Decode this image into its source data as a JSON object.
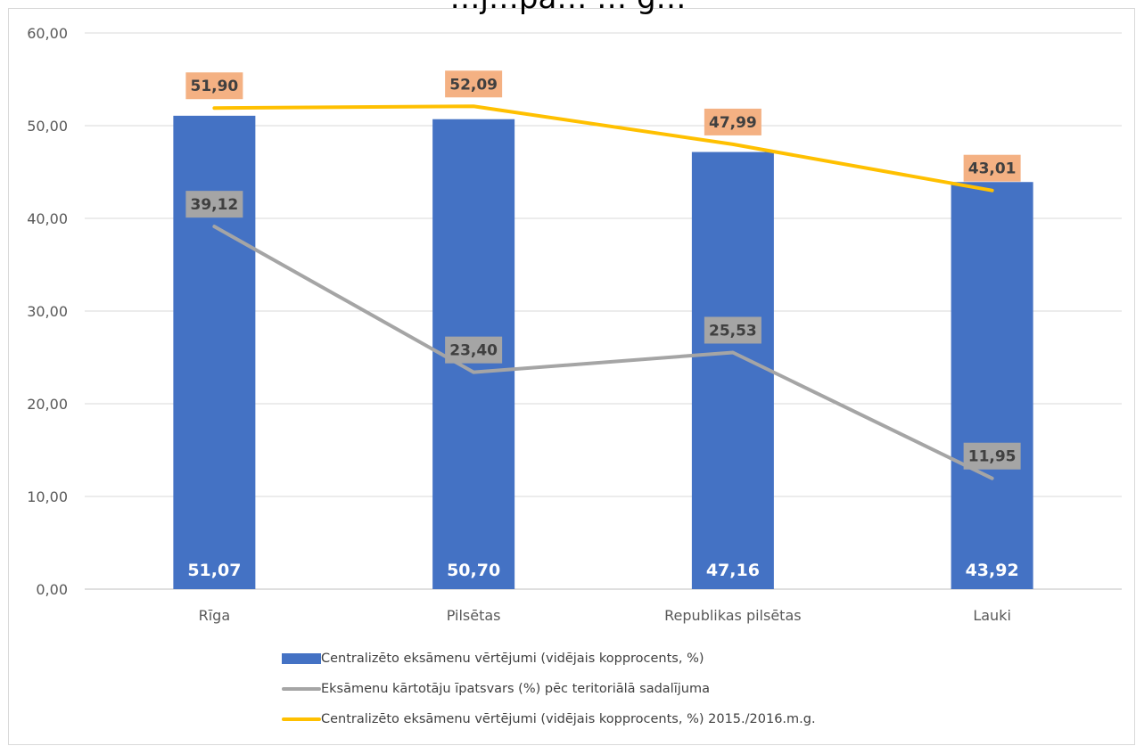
{
  "chart_data": {
    "type": "bar",
    "title": "…j…pa… … g…",
    "categories": [
      "Rīga",
      "Pilsētas",
      "Republikas pilsētas",
      "Lauki"
    ],
    "ylim": [
      0,
      60
    ],
    "yticks": [
      "0,00",
      "10,00",
      "20,00",
      "30,00",
      "40,00",
      "50,00",
      "60,00"
    ],
    "grid": true,
    "legend_position": "bottom",
    "series": [
      {
        "name": "Centralizēto eksāmenu vērtējumi (vidējais kopprocents, %)",
        "kind": "bar",
        "color": "#4472c4",
        "values": [
          51.07,
          50.7,
          47.16,
          43.92
        ],
        "labels": [
          "51,07",
          "50,70",
          "47,16",
          "43,92"
        ]
      },
      {
        "name": "Eksāmenu kārtotāju īpatsvars (%) pēc teritoriālā sadalījuma",
        "kind": "line",
        "color": "#a5a5a5",
        "label_bg": "#a5a5a5",
        "values": [
          39.12,
          23.4,
          25.53,
          11.95
        ],
        "labels": [
          "39,12",
          "23,40",
          "25,53",
          "11,95"
        ]
      },
      {
        "name": "Centralizēto eksāmenu vērtējumi (vidējais kopprocents, %) 2015./2016.m.g.",
        "kind": "line",
        "color": "#ffc000",
        "label_bg": "#f4b183",
        "values": [
          51.9,
          52.09,
          47.99,
          43.01
        ],
        "labels": [
          "51,90",
          "52,09",
          "47,99",
          "43,01"
        ]
      }
    ]
  }
}
